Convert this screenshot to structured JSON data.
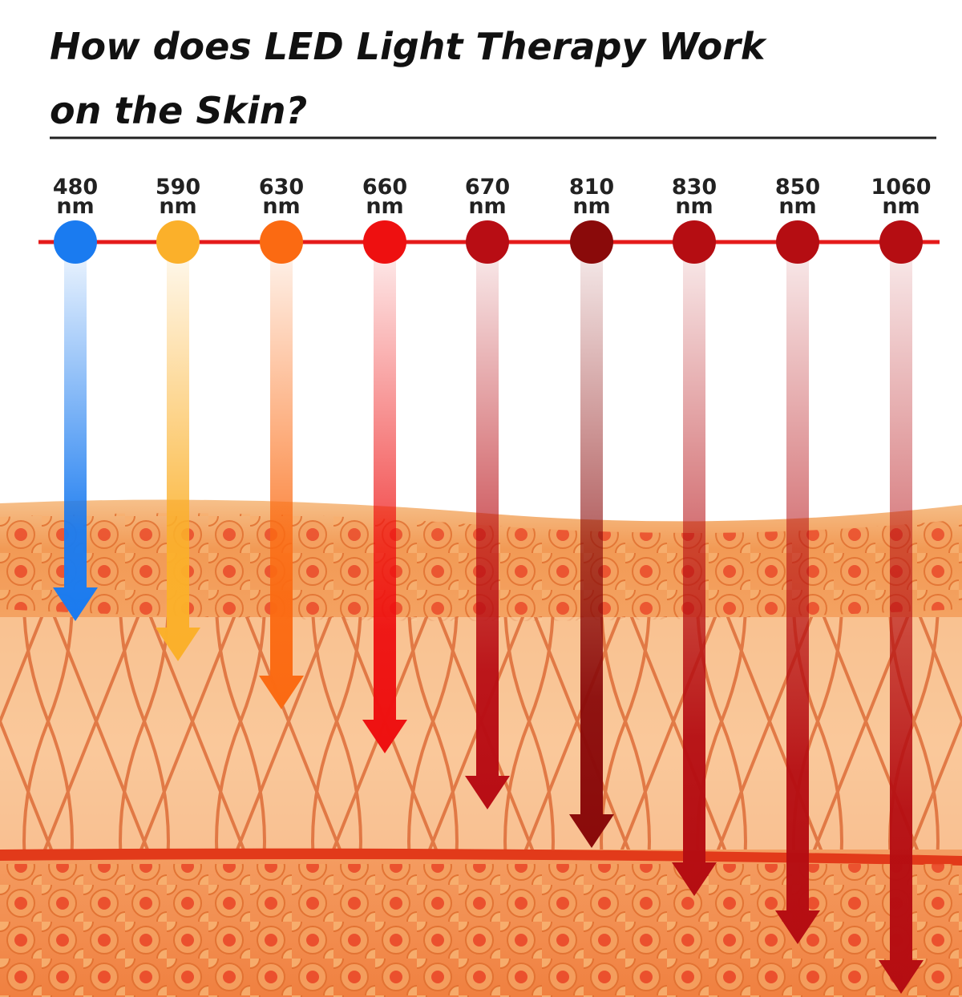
{
  "header": {
    "title_lines": [
      "How does LED Light Therapy Work",
      "on the Skin?"
    ]
  },
  "wavelengths": [
    {
      "value": 480,
      "unit": "nm",
      "color": "#1a7bf0"
    },
    {
      "value": 590,
      "unit": "nm",
      "color": "#fbb02a"
    },
    {
      "value": 630,
      "unit": "nm",
      "color": "#fb6a12"
    },
    {
      "value": 660,
      "unit": "nm",
      "color": "#ee1010"
    },
    {
      "value": 670,
      "unit": "nm",
      "color": "#b80d14"
    },
    {
      "value": 810,
      "unit": "nm",
      "color": "#8a0a0a"
    },
    {
      "value": 830,
      "unit": "nm",
      "color": "#b50d12"
    },
    {
      "value": 850,
      "unit": "nm",
      "color": "#b50d12"
    },
    {
      "value": 1060,
      "unit": "nm",
      "color": "#b50d12"
    }
  ]
}
